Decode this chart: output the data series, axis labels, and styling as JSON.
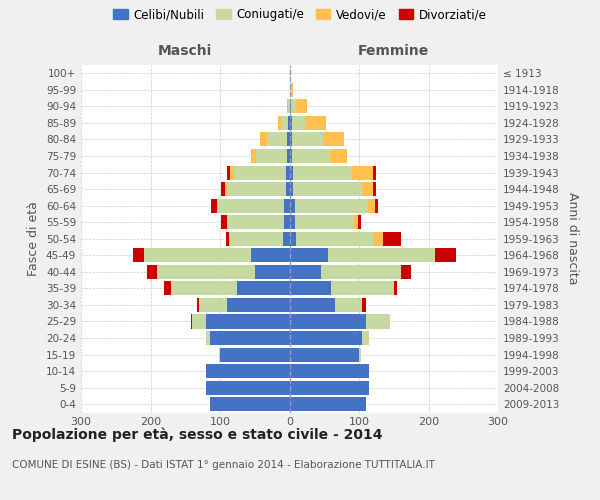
{
  "age_groups": [
    "0-4",
    "5-9",
    "10-14",
    "15-19",
    "20-24",
    "25-29",
    "30-34",
    "35-39",
    "40-44",
    "45-49",
    "50-54",
    "55-59",
    "60-64",
    "65-69",
    "70-74",
    "75-79",
    "80-84",
    "85-89",
    "90-94",
    "95-99",
    "100+"
  ],
  "birth_years": [
    "2009-2013",
    "2004-2008",
    "1999-2003",
    "1994-1998",
    "1989-1993",
    "1984-1988",
    "1979-1983",
    "1974-1978",
    "1969-1973",
    "1964-1968",
    "1959-1963",
    "1954-1958",
    "1949-1953",
    "1944-1948",
    "1939-1943",
    "1934-1938",
    "1929-1933",
    "1924-1928",
    "1919-1923",
    "1914-1918",
    "≤ 1913"
  ],
  "male_celibi": [
    115,
    120,
    120,
    100,
    115,
    120,
    90,
    75,
    50,
    55,
    10,
    8,
    8,
    5,
    5,
    3,
    3,
    2,
    0,
    0,
    0
  ],
  "male_coniugati": [
    0,
    0,
    0,
    2,
    5,
    20,
    40,
    95,
    140,
    155,
    75,
    80,
    95,
    85,
    75,
    45,
    30,
    10,
    2,
    0,
    0
  ],
  "male_vedovi": [
    0,
    0,
    0,
    0,
    0,
    0,
    0,
    0,
    0,
    0,
    2,
    2,
    2,
    3,
    5,
    8,
    10,
    5,
    2,
    0,
    0
  ],
  "male_divorziati": [
    0,
    0,
    0,
    0,
    0,
    2,
    3,
    10,
    15,
    15,
    5,
    8,
    8,
    5,
    5,
    0,
    0,
    0,
    0,
    0,
    0
  ],
  "female_celibi": [
    110,
    115,
    115,
    100,
    105,
    110,
    65,
    60,
    45,
    55,
    10,
    8,
    8,
    5,
    5,
    3,
    3,
    3,
    2,
    0,
    0
  ],
  "female_coniugati": [
    0,
    0,
    0,
    3,
    10,
    35,
    40,
    90,
    115,
    155,
    110,
    85,
    105,
    100,
    85,
    55,
    45,
    20,
    8,
    2,
    0
  ],
  "female_vedovi": [
    0,
    0,
    0,
    0,
    0,
    0,
    0,
    0,
    0,
    0,
    15,
    5,
    10,
    15,
    30,
    25,
    30,
    30,
    15,
    3,
    2
  ],
  "female_divorziati": [
    0,
    0,
    0,
    0,
    0,
    0,
    5,
    5,
    15,
    30,
    25,
    5,
    5,
    5,
    5,
    0,
    0,
    0,
    0,
    0,
    0
  ],
  "colors": {
    "celibi": "#4472c4",
    "coniugati": "#c5d9a0",
    "vedovi": "#ffc050",
    "divorziati": "#cc0000"
  },
  "xlim": 300,
  "title": "Popolazione per età, sesso e stato civile - 2014",
  "subtitle": "COMUNE DI ESINE (BS) - Dati ISTAT 1° gennaio 2014 - Elaborazione TUTTITALIA.IT",
  "ylabel_left": "Fasce di età",
  "ylabel_right": "Anni di nascita",
  "xlabel_left": "Maschi",
  "xlabel_right": "Femmine",
  "background_color": "#f0f0f0",
  "plot_bg_color": "#ffffff"
}
